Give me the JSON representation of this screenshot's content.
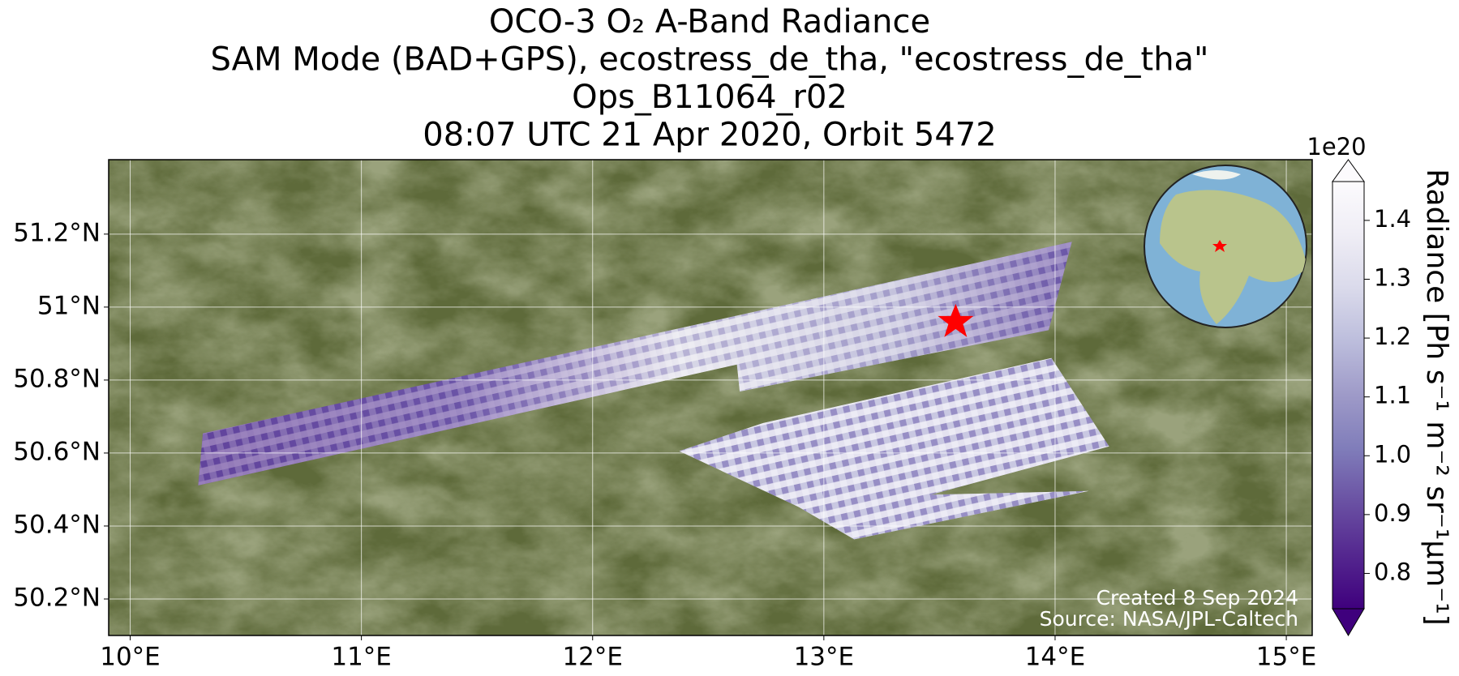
{
  "chart_data": {
    "type": "map",
    "title_lines": [
      "OCO-3 O₂ A-Band Radiance",
      "SAM Mode (BAD+GPS), ecostress_de_tha, \"ecostress_de_tha\"",
      "Ops_B11064_r02",
      "08:07 UTC 21 Apr 2020, Orbit 5472"
    ],
    "xlim": [
      9.907,
      15.112
    ],
    "ylim": [
      50.1,
      51.404
    ],
    "xticks": [
      {
        "value": 10,
        "label": "10°E"
      },
      {
        "value": 11,
        "label": "11°E"
      },
      {
        "value": 12,
        "label": "12°E"
      },
      {
        "value": 13,
        "label": "13°E"
      },
      {
        "value": 14,
        "label": "14°E"
      },
      {
        "value": 15,
        "label": "15°E"
      }
    ],
    "yticks": [
      {
        "value": 50.2,
        "label": "50.2°N"
      },
      {
        "value": 50.4,
        "label": "50.4°N"
      },
      {
        "value": 50.6,
        "label": "50.6°N"
      },
      {
        "value": 50.8,
        "label": "50.8°N"
      },
      {
        "value": 51,
        "label": "51°N"
      },
      {
        "value": 51.2,
        "label": "51.2°N"
      }
    ],
    "grid": true,
    "target": {
      "lon": 13.57,
      "lat": 50.96,
      "color": "#ff0000"
    },
    "colorbar": {
      "label": "Radiance [Ph s⁻¹ m⁻² sr⁻¹μm⁻¹]",
      "offset_label": "1e20",
      "clim": [
        0.74,
        1.466
      ],
      "ticks": [
        0.8,
        0.9,
        1.0,
        1.1,
        1.2,
        1.3,
        1.4
      ],
      "tick_labels": [
        "0.8",
        "0.9",
        "1.0",
        "1.1",
        "1.2",
        "1.3",
        "1.4"
      ],
      "colormap": [
        "#3f007d",
        "#54278f",
        "#6a51a3",
        "#807dba",
        "#9e9ac8",
        "#bcbddc",
        "#dadaeb",
        "#efedf5",
        "#fcfbfd"
      ]
    },
    "annotations": [
      "Created 8 Sep 2024",
      "Source: NASA/JPL-Caltech"
    ]
  }
}
